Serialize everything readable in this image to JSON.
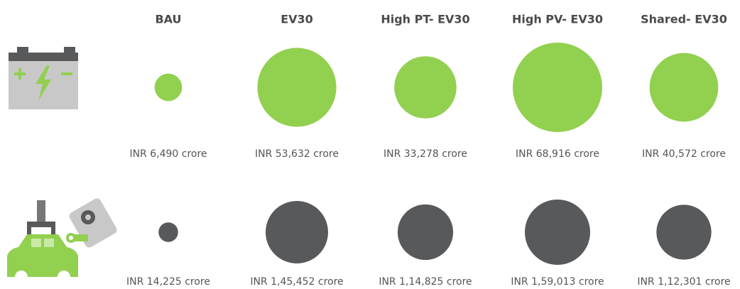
{
  "chart_data": {
    "type": "bubble",
    "categories": [
      "BAU",
      "EV30",
      "High PT- EV30",
      "High PV- EV30",
      "Shared- EV30"
    ],
    "series": [
      {
        "color": "#92d050",
        "values": [
          6490,
          53632,
          33278,
          68916,
          40572
        ],
        "value_labels": [
          "INR 6,490 crore",
          "INR 53,632 crore",
          "INR 33,278 crore",
          "INR 68,916 crore",
          "INR 40,572 crore"
        ]
      },
      {
        "color": "#58595b",
        "values": [
          14225,
          145452,
          114825,
          159013,
          112301
        ],
        "value_labels": [
          "INR 14,225 crore",
          "INR 1,45,452 crore",
          "INR 1,14,825 crore",
          "INR 1,59,013 crore",
          "INR 1,12,301 crore"
        ]
      }
    ]
  }
}
